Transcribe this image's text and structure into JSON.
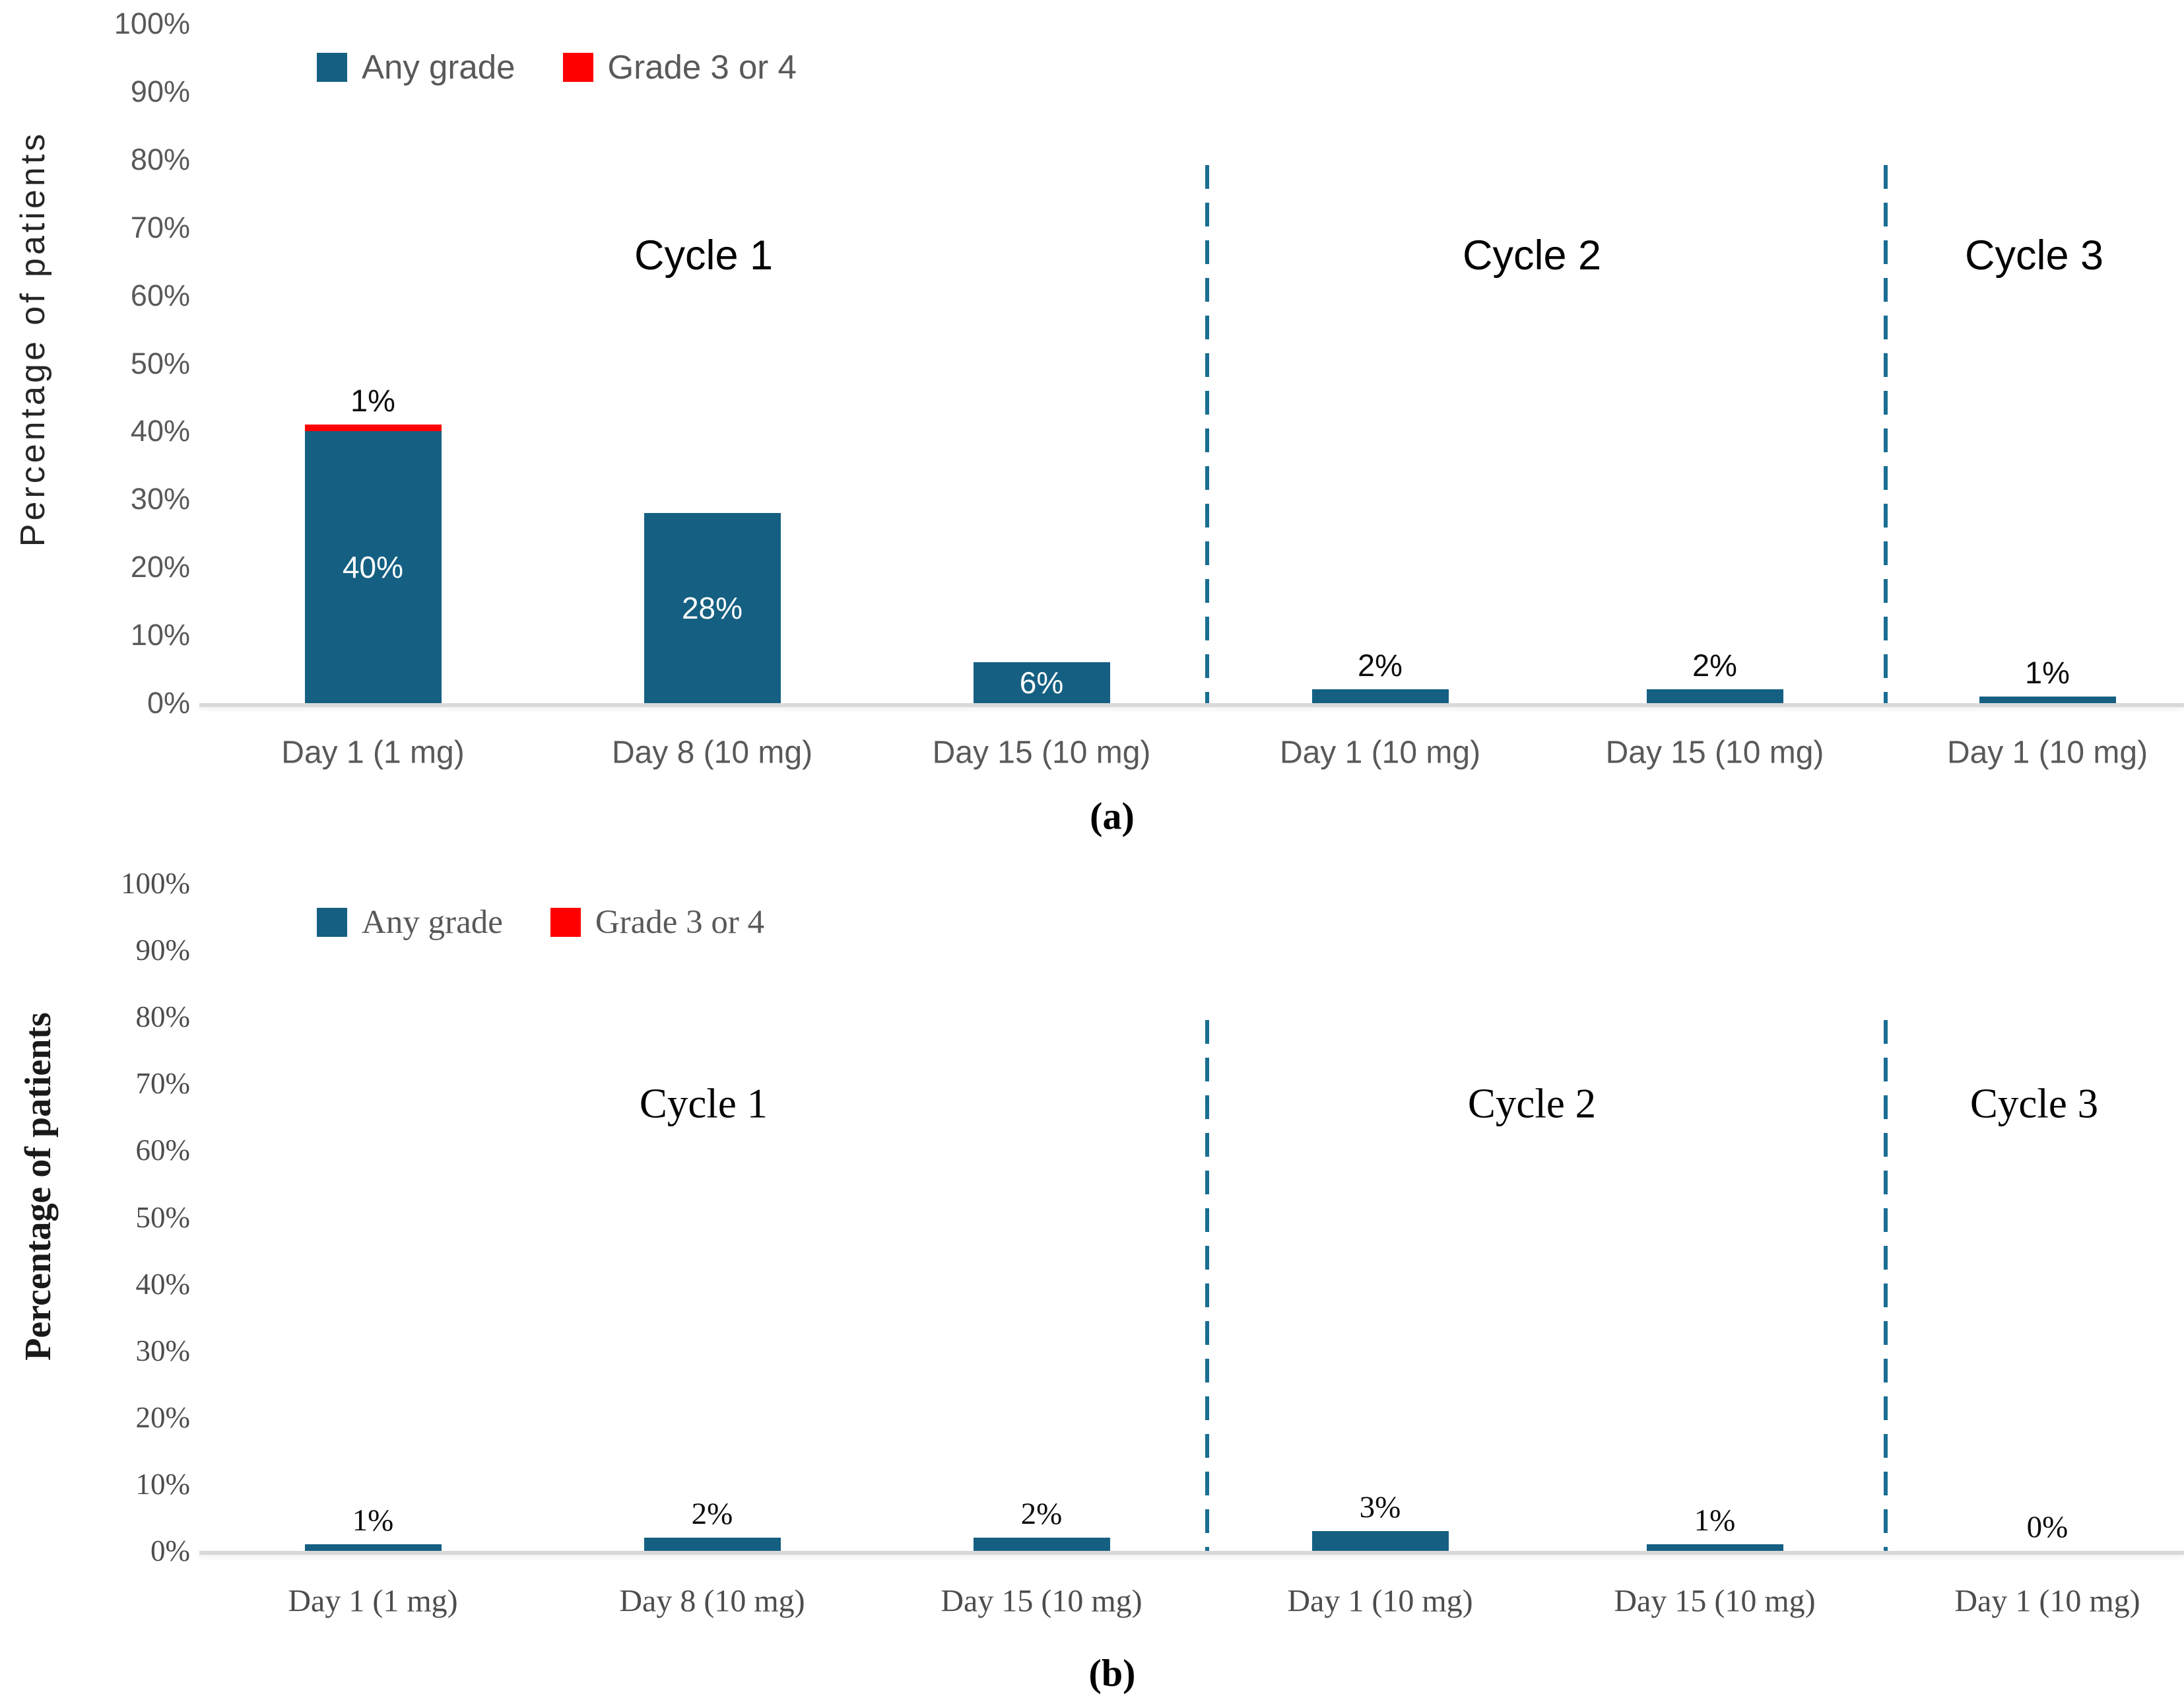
{
  "figure": {
    "panel_a_caption": "(a)",
    "panel_b_caption": "(b)"
  },
  "colors": {
    "any_grade": "#156082",
    "grade_3_or_4": "#FF0000",
    "separator_dash": "#1B6E93",
    "axis_text": "#595959",
    "baseline": "#D9D9D9"
  },
  "chart_data": [
    {
      "id": "a",
      "type": "bar",
      "stacked": true,
      "caption": "(a)",
      "ylabel": "Percentage of patients",
      "ylim": [
        0,
        100
      ],
      "grid": false,
      "legend_position": "top-left",
      "y_tick_labels": [
        "0%",
        "10%",
        "20%",
        "30%",
        "40%",
        "50%",
        "60%",
        "70%",
        "80%",
        "90%",
        "100%"
      ],
      "categories": [
        "Day 1 (1 mg)",
        "Day 8 (10 mg)",
        "Day 15 (10 mg)",
        "Day 1 (10 mg)",
        "Day 15 (10 mg)",
        "Day 1 (10 mg)"
      ],
      "series": [
        {
          "name": "Any grade",
          "color": "#156082",
          "values": [
            40,
            28,
            6,
            2,
            2,
            1
          ]
        },
        {
          "name": "Grade 3 or 4",
          "color": "#FF0000",
          "values": [
            1,
            0,
            0,
            0,
            0,
            0
          ]
        }
      ],
      "bar_labels": [
        {
          "inside": "40%",
          "above": "1%"
        },
        {
          "inside": "28%"
        },
        {
          "inside": "6%"
        },
        {
          "above": "2%"
        },
        {
          "above": "2%"
        },
        {
          "above": "1%"
        }
      ],
      "cycle_titles": [
        "Cycle 1",
        "Cycle 2",
        "Cycle 3"
      ]
    },
    {
      "id": "b",
      "type": "bar",
      "stacked": true,
      "caption": "(b)",
      "ylabel": "Percentage of patients",
      "ylim": [
        0,
        100
      ],
      "grid": false,
      "legend_position": "top-left",
      "y_tick_labels": [
        "0%",
        "10%",
        "20%",
        "30%",
        "40%",
        "50%",
        "60%",
        "70%",
        "80%",
        "90%",
        "100%"
      ],
      "categories": [
        "Day 1 (1 mg)",
        "Day 8 (10 mg)",
        "Day 15 (10 mg)",
        "Day 1 (10 mg)",
        "Day 15 (10 mg)",
        "Day 1 (10 mg)"
      ],
      "series": [
        {
          "name": "Any grade",
          "color": "#156082",
          "values": [
            1,
            2,
            2,
            3,
            1,
            0
          ]
        },
        {
          "name": "Grade 3 or 4",
          "color": "#FF0000",
          "values": [
            0,
            0,
            0,
            0,
            0,
            0
          ]
        }
      ],
      "bar_labels": [
        {
          "above": "1%"
        },
        {
          "above": "2%"
        },
        {
          "above": "2%"
        },
        {
          "above": "3%"
        },
        {
          "above": "1%"
        },
        {
          "above": "0%"
        }
      ],
      "cycle_titles": [
        "Cycle 1",
        "Cycle 2",
        "Cycle 3"
      ]
    }
  ]
}
